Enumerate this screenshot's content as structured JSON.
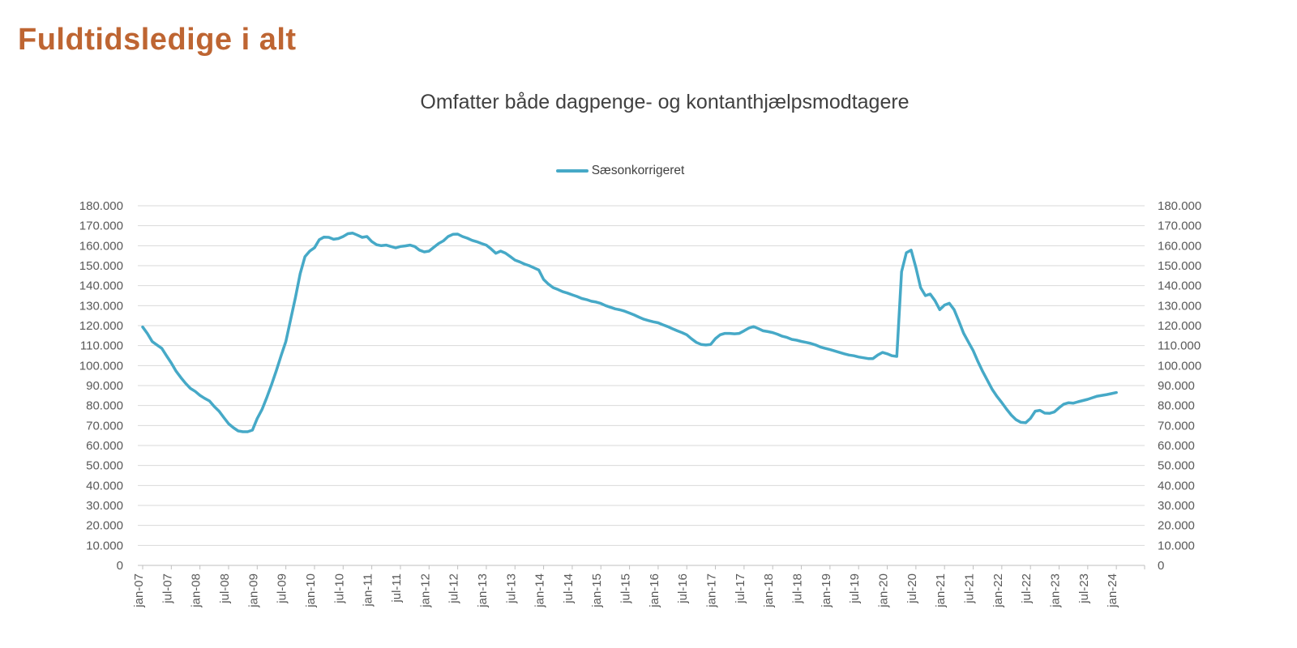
{
  "page": {
    "title": "Fuldtidsledige i alt",
    "subtitle": "Omfatter både dagpenge- og kontanthjælpsmodtagere"
  },
  "legend": {
    "series_label": "Sæsonkorrigeret"
  },
  "colors": {
    "background": "#FFFFFF",
    "title": "#BE6532",
    "subtitle_text": "#404040",
    "axis_text": "#595959",
    "gridline": "#D9D9D9",
    "axis_line": "#BFBFBF",
    "series": "#46A9C7"
  },
  "chart_data": {
    "type": "line",
    "title": "Omfatter både dagpenge- og kontanthjælpsmodtagere",
    "xlabel": "",
    "ylabel": "",
    "ylim": [
      0,
      180000
    ],
    "grid": "horizontal",
    "legend_position": "top-center",
    "x_frequency": "monthly",
    "x_start": "jan-07",
    "x_end": "jan-24",
    "n_points": 205,
    "x_tick_labels": [
      "jan-07",
      "jul-07",
      "jan-08",
      "jul-08",
      "jan-09",
      "jul-09",
      "jan-10",
      "jul-10",
      "jan-11",
      "jul-11",
      "jan-12",
      "jul-12",
      "jan-13",
      "jul-13",
      "jan-14",
      "jul-14",
      "jan-15",
      "jul-15",
      "jan-16",
      "jul-16",
      "jan-17",
      "jul-17",
      "jan-18",
      "jul-18",
      "jan-19",
      "jul-19",
      "jan-20",
      "jul-20",
      "jan-21",
      "jul-21",
      "jan-22",
      "jul-22",
      "jan-23",
      "jul-23",
      "jan-24"
    ],
    "y_ticks": [
      0,
      10000,
      20000,
      30000,
      40000,
      50000,
      60000,
      70000,
      80000,
      90000,
      100000,
      110000,
      120000,
      130000,
      140000,
      150000,
      160000,
      170000,
      180000
    ],
    "y_tick_labels": [
      "0",
      "10.000",
      "20.000",
      "30.000",
      "40.000",
      "50.000",
      "60.000",
      "70.000",
      "80.000",
      "90.000",
      "100.000",
      "110.000",
      "120.000",
      "130.000",
      "140.000",
      "150.000",
      "160.000",
      "170.000",
      "180.000"
    ],
    "series": [
      {
        "name": "Sæsonkorrigeret",
        "values": [
          119300,
          116000,
          112000,
          110300,
          108600,
          104900,
          101300,
          97200,
          94000,
          91100,
          88600,
          87100,
          85100,
          83600,
          82300,
          79500,
          77200,
          74000,
          70900,
          68900,
          67300,
          66900,
          66900,
          67700,
          73500,
          78000,
          84000,
          90500,
          97500,
          105000,
          112000,
          123000,
          134000,
          146000,
          154500,
          157300,
          159000,
          163000,
          164300,
          164200,
          163200,
          163600,
          164600,
          166000,
          166300,
          165300,
          164200,
          164600,
          162100,
          160500,
          160000,
          160300,
          159600,
          158900,
          159600,
          159900,
          160300,
          159600,
          157800,
          156900,
          157300,
          159200,
          161100,
          162400,
          164600,
          165700,
          165800,
          164600,
          163800,
          162700,
          162000,
          161100,
          160300,
          158400,
          156200,
          157300,
          156300,
          154600,
          152800,
          151900,
          150800,
          150000,
          148900,
          147800,
          143100,
          140800,
          139000,
          138100,
          137000,
          136300,
          135400,
          134600,
          133600,
          133000,
          132200,
          131800,
          131100,
          130000,
          129200,
          128400,
          127900,
          127200,
          126300,
          125300,
          124200,
          123200,
          122500,
          121900,
          121400,
          120400,
          119500,
          118400,
          117400,
          116500,
          115400,
          113400,
          111600,
          110600,
          110300,
          110600,
          113500,
          115400,
          116100,
          116100,
          115900,
          116100,
          117400,
          118800,
          119500,
          118500,
          117400,
          117000,
          116500,
          115700,
          114700,
          114100,
          113100,
          112700,
          112100,
          111600,
          111100,
          110300,
          109300,
          108600,
          108000,
          107300,
          106600,
          105900,
          105300,
          104900,
          104300,
          103900,
          103500,
          103500,
          105300,
          106600,
          105900,
          104900,
          104600,
          147000,
          156500,
          157800,
          149000,
          139000,
          135000,
          135800,
          132500,
          128000,
          130300,
          131200,
          128000,
          122300,
          116200,
          111800,
          107500,
          102000,
          97000,
          92500,
          88000,
          84500,
          81500,
          78200,
          75200,
          72900,
          71600,
          71400,
          73600,
          77200,
          77600,
          76200,
          76100,
          76800,
          78900,
          80700,
          81400,
          81200,
          81900,
          82500,
          83100,
          83900,
          84700,
          85100,
          85500,
          86000,
          86500
        ]
      }
    ]
  }
}
